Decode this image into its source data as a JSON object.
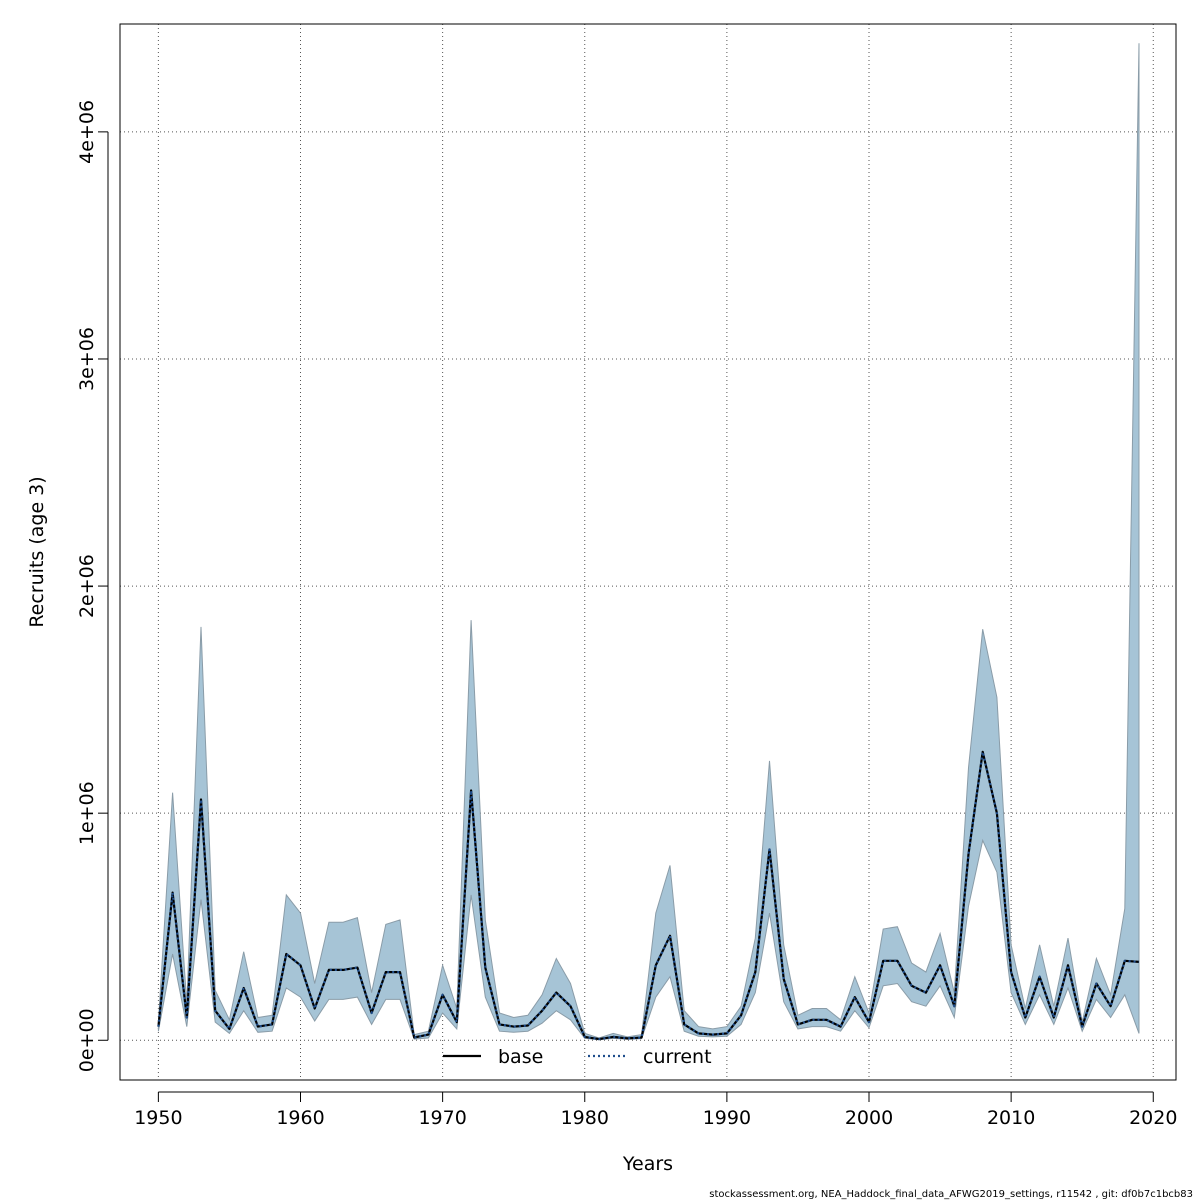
{
  "chart_data": {
    "type": "area",
    "xlabel": "Years",
    "ylabel": "Recruits (age 3)",
    "xlim": [
      1947.3,
      2021.6
    ],
    "ylim": [
      -175000,
      4475000
    ],
    "grid": true,
    "x_ticks": [
      1950,
      1960,
      1970,
      1980,
      1990,
      2000,
      2010,
      2020
    ],
    "x_tick_labels": [
      "1950",
      "1960",
      "1970",
      "1980",
      "1990",
      "2000",
      "2010",
      "2020"
    ],
    "y_ticks": [
      0,
      1000000,
      2000000,
      3000000,
      4000000
    ],
    "y_tick_labels": [
      "0e+00",
      "1e+06",
      "2e+06",
      "3e+06",
      "4e+06"
    ],
    "legend_position": "bottom",
    "legend": [
      {
        "label": "base",
        "color": "#000000",
        "style": "solid"
      },
      {
        "label": "current",
        "color": "#1f4e8c",
        "style": "dotted"
      }
    ],
    "band_color": "#a6c4d6",
    "band_edge_color": "#8a9ca8",
    "x": [
      1950,
      1951,
      1952,
      1953,
      1954,
      1955,
      1956,
      1957,
      1958,
      1959,
      1960,
      1961,
      1962,
      1963,
      1964,
      1965,
      1966,
      1967,
      1968,
      1969,
      1970,
      1971,
      1972,
      1973,
      1974,
      1975,
      1976,
      1977,
      1978,
      1979,
      1980,
      1981,
      1982,
      1983,
      1984,
      1985,
      1986,
      1987,
      1988,
      1989,
      1990,
      1991,
      1992,
      1993,
      1994,
      1995,
      1996,
      1997,
      1998,
      1999,
      2000,
      2001,
      2002,
      2003,
      2004,
      2005,
      2006,
      2007,
      2008,
      2009,
      2010,
      2011,
      2012,
      2013,
      2014,
      2015,
      2016,
      2017,
      2018,
      2019
    ],
    "series": [
      {
        "name": "base",
        "color": "#000000",
        "style": "solid",
        "values": [
          60000,
          650000,
          100000,
          1060000,
          130000,
          50000,
          230000,
          60000,
          70000,
          380000,
          330000,
          140000,
          310000,
          310000,
          320000,
          120000,
          300000,
          300000,
          12000,
          25000,
          200000,
          80000,
          1100000,
          320000,
          70000,
          60000,
          65000,
          130000,
          210000,
          150000,
          15000,
          5000,
          15000,
          8000,
          12000,
          330000,
          460000,
          70000,
          30000,
          25000,
          30000,
          110000,
          300000,
          840000,
          270000,
          70000,
          90000,
          90000,
          60000,
          190000,
          80000,
          350000,
          350000,
          240000,
          210000,
          330000,
          150000,
          820000,
          1270000,
          1000000,
          300000,
          100000,
          280000,
          100000,
          330000,
          60000,
          250000,
          150000,
          350000,
          345000
        ]
      },
      {
        "name": "current",
        "color": "#1f4e8c",
        "style": "dotted",
        "values": [
          60000,
          650000,
          100000,
          1060000,
          130000,
          50000,
          230000,
          60000,
          70000,
          380000,
          330000,
          140000,
          310000,
          310000,
          320000,
          120000,
          300000,
          300000,
          12000,
          25000,
          200000,
          80000,
          1100000,
          320000,
          70000,
          60000,
          65000,
          130000,
          210000,
          150000,
          15000,
          5000,
          15000,
          8000,
          12000,
          330000,
          460000,
          70000,
          30000,
          25000,
          30000,
          110000,
          300000,
          840000,
          270000,
          70000,
          90000,
          90000,
          60000,
          190000,
          80000,
          350000,
          350000,
          240000,
          210000,
          330000,
          150000,
          820000,
          1270000,
          1000000,
          300000,
          100000,
          280000,
          100000,
          330000,
          60000,
          250000,
          150000,
          350000,
          345000
        ]
      }
    ],
    "band_upper": [
      80000,
      1090000,
      160000,
      1820000,
      220000,
      90000,
      390000,
      100000,
      110000,
      640000,
      560000,
      250000,
      520000,
      520000,
      540000,
      210000,
      510000,
      530000,
      25000,
      40000,
      330000,
      140000,
      1850000,
      530000,
      120000,
      100000,
      110000,
      200000,
      360000,
      250000,
      30000,
      10000,
      30000,
      15000,
      25000,
      560000,
      770000,
      130000,
      60000,
      50000,
      60000,
      150000,
      450000,
      1230000,
      420000,
      110000,
      140000,
      140000,
      90000,
      280000,
      120000,
      490000,
      500000,
      340000,
      300000,
      470000,
      210000,
      1200000,
      1810000,
      1510000,
      420000,
      140000,
      420000,
      150000,
      450000,
      80000,
      360000,
      200000,
      580000,
      4390000
    ],
    "band_lower": [
      40000,
      380000,
      60000,
      620000,
      80000,
      30000,
      130000,
      35000,
      40000,
      230000,
      190000,
      85000,
      180000,
      180000,
      190000,
      70000,
      180000,
      180000,
      5000,
      10000,
      120000,
      50000,
      640000,
      190000,
      40000,
      35000,
      40000,
      75000,
      130000,
      90000,
      8000,
      2500,
      8000,
      4000,
      7000,
      190000,
      280000,
      40000,
      18000,
      15000,
      18000,
      70000,
      210000,
      560000,
      170000,
      50000,
      60000,
      60000,
      40000,
      130000,
      55000,
      240000,
      250000,
      170000,
      150000,
      240000,
      100000,
      590000,
      880000,
      740000,
      210000,
      70000,
      200000,
      70000,
      230000,
      40000,
      180000,
      100000,
      200000,
      30000
    ]
  },
  "footer_text": "stockassessment.org, NEA_Haddock_final_data_AFWG2019_settings, r11542 , git: df0b7c1bcb83"
}
